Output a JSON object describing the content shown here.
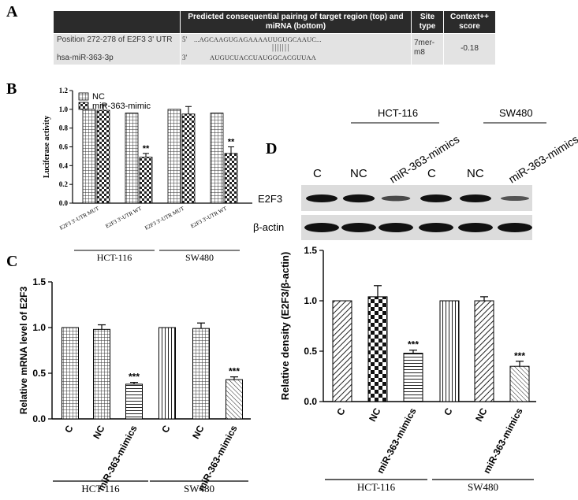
{
  "panels": {
    "a": "A",
    "b": "B",
    "c": "C",
    "d": "D"
  },
  "table": {
    "headers": [
      "",
      "Predicted consequential pairing of target region (top) and miRNA (bottom)",
      "Site type",
      "Context++ score"
    ],
    "row1_label": "Position 272-278 of E2F3 3' UTR",
    "row2_label": "hsa-miR-363-3p",
    "target_prefix": "5'",
    "target_seq": "...AGCAAGUGAGAAAAUUGUGCAAUC...",
    "pairing": "|||||||",
    "mirna_prefix": "3'",
    "mirna_seq": "AUGUCUACCUAUGGCACGUUAA",
    "site_type": "7mer-m8",
    "score": "-0.18"
  },
  "blot": {
    "group_labels": [
      "HCT-116",
      "SW480"
    ],
    "lane_labels": [
      "C",
      "NC",
      "miR-363-mimics",
      "C",
      "NC",
      "miR-363-mimics"
    ],
    "rows": [
      "E2F3",
      "β-actin"
    ],
    "e2f3_intensity": [
      1.0,
      1.05,
      0.45,
      1.0,
      1.0,
      0.35
    ]
  },
  "chart_data": [
    {
      "id": "B",
      "type": "bar",
      "ylabel": "Luciferase activity",
      "ylim": [
        0,
        1.2
      ],
      "yticks": [
        "0.0",
        "0.2",
        "0.4",
        "0.6",
        "0.8",
        "1.0",
        "1.2"
      ],
      "legend": [
        "NC",
        "miR-363-mimic"
      ],
      "legend_position": "top-left",
      "categories": [
        "E2F3 3'-UTR MUT",
        "E2F3 3'-UTR WT",
        "E2F3 3'-UTR MUT",
        "E2F3 3'-UTR WT"
      ],
      "series": [
        {
          "name": "NC",
          "values": [
            1.0,
            0.96,
            1.0,
            0.96
          ],
          "errors": [
            0,
            0,
            0,
            0
          ]
        },
        {
          "name": "miR-363-mimic",
          "values": [
            0.99,
            0.49,
            0.95,
            0.53
          ],
          "errors": [
            0.06,
            0.04,
            0.08,
            0.07
          ]
        }
      ],
      "annotations": [
        "",
        "**",
        "",
        "**"
      ],
      "groups": [
        {
          "label": "HCT-116",
          "span": [
            0,
            1
          ]
        },
        {
          "label": "SW480",
          "span": [
            2,
            3
          ]
        }
      ]
    },
    {
      "id": "C",
      "type": "bar",
      "ylabel": "Relative mRNA level of E2F3",
      "ylim": [
        0,
        1.5
      ],
      "yticks": [
        "0.0",
        "0.5",
        "1.0",
        "1.5"
      ],
      "categories": [
        "C",
        "NC",
        "miR-363-mimics",
        "C",
        "NC",
        "miR-363-mimics"
      ],
      "values": [
        1.0,
        0.98,
        0.38,
        1.0,
        0.99,
        0.43
      ],
      "errors": [
        0,
        0.05,
        0.02,
        0,
        0.06,
        0.03
      ],
      "annotations": [
        "",
        "",
        "***",
        "",
        "",
        "***"
      ],
      "groups": [
        {
          "label": "HCT-116",
          "span": [
            0,
            2
          ]
        },
        {
          "label": "SW480",
          "span": [
            3,
            5
          ]
        }
      ]
    },
    {
      "id": "D",
      "type": "bar",
      "ylabel": "Relative density (E2F3/β-actin)",
      "ylim": [
        0,
        1.5
      ],
      "yticks": [
        "0.0",
        "0.5",
        "1.0",
        "1.5"
      ],
      "categories": [
        "C",
        "NC",
        "miR-363-mimics",
        "C",
        "NC",
        "miR-363-mimics"
      ],
      "values": [
        1.0,
        1.04,
        0.48,
        1.0,
        1.0,
        0.35
      ],
      "errors": [
        0,
        0.11,
        0.03,
        0,
        0.04,
        0.05
      ],
      "annotations": [
        "",
        "",
        "***",
        "",
        "",
        "***"
      ],
      "groups": [
        {
          "label": "HCT-116",
          "span": [
            0,
            2
          ]
        },
        {
          "label": "SW480",
          "span": [
            3,
            5
          ]
        }
      ]
    }
  ]
}
